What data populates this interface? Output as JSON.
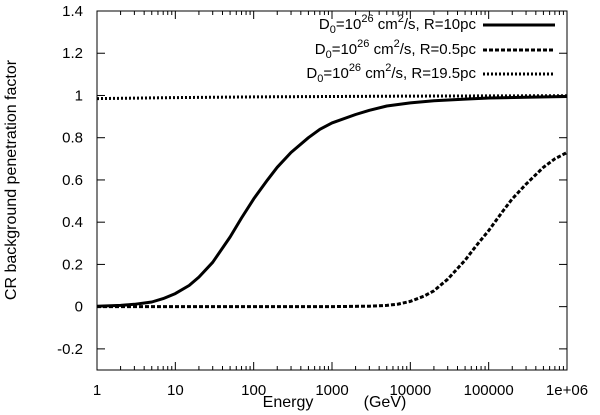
{
  "chart_data": {
    "type": "line",
    "title": "",
    "xlabel": "Energy",
    "xlabel_unit": "(GeV)",
    "ylabel": "CR background penetration factor",
    "xscale": "log",
    "xlim": [
      1,
      1000000
    ],
    "ylim": [
      -0.3,
      1.4
    ],
    "grid": false,
    "legend_position": "top-right",
    "x_ticks": [
      1,
      10,
      100,
      1000,
      10000,
      100000,
      1000000
    ],
    "x_tick_labels": [
      "1",
      "10",
      "100",
      "1000",
      "10000",
      "100000",
      "1e+06"
    ],
    "y_ticks": [
      -0.2,
      0,
      0.2,
      0.4,
      0.6,
      0.8,
      1,
      1.2,
      1.4
    ],
    "y_tick_labels": [
      "-0.2",
      "0",
      "0.2",
      "0.4",
      "0.6",
      "0.8",
      "1",
      "1.2",
      "1.4"
    ],
    "series": [
      {
        "name": "D0=10^26 cm^2/s, R=10pc",
        "legend": {
          "d": "D",
          "d_sub": "0",
          "eq": "=10",
          "exp": "26",
          "unit": " cm",
          "unit_exp": "2",
          "rest": "/s, R=10pc"
        },
        "style": "solid",
        "x": [
          1,
          2,
          3,
          5,
          7,
          10,
          15,
          20,
          30,
          50,
          70,
          100,
          150,
          200,
          300,
          500,
          700,
          1000,
          2000,
          3000,
          5000,
          10000,
          20000,
          50000,
          100000,
          300000,
          1000000
        ],
        "y": [
          0.002,
          0.006,
          0.011,
          0.022,
          0.038,
          0.062,
          0.1,
          0.14,
          0.21,
          0.33,
          0.42,
          0.51,
          0.6,
          0.66,
          0.73,
          0.8,
          0.84,
          0.87,
          0.91,
          0.93,
          0.95,
          0.965,
          0.975,
          0.983,
          0.988,
          0.992,
          0.995
        ]
      },
      {
        "name": "D0=10^26 cm^2/s, R=0.5pc",
        "legend": {
          "d": "D",
          "d_sub": "0",
          "eq": "=10",
          "exp": "26",
          "unit": " cm",
          "unit_exp": "2",
          "rest": "/s, R=0.5pc"
        },
        "style": "dashed",
        "x": [
          1,
          100,
          1000,
          3000,
          5000,
          7000,
          10000,
          15000,
          20000,
          30000,
          50000,
          70000,
          100000,
          150000,
          200000,
          300000,
          500000,
          700000,
          1000000
        ],
        "y": [
          0,
          0,
          0,
          0.002,
          0.006,
          0.012,
          0.025,
          0.05,
          0.075,
          0.13,
          0.22,
          0.29,
          0.36,
          0.45,
          0.51,
          0.58,
          0.66,
          0.7,
          0.73
        ]
      },
      {
        "name": "D0=10^26 cm^2/s, R=19.5pc",
        "legend": {
          "d": "D",
          "d_sub": "0",
          "eq": "=10",
          "exp": "26",
          "unit": " cm",
          "unit_exp": "2",
          "rest": "/s, R=19.5pc"
        },
        "style": "dotted",
        "x": [
          1,
          10,
          100,
          1000,
          10000,
          100000,
          1000000
        ],
        "y": [
          0.985,
          0.99,
          0.993,
          0.995,
          0.997,
          0.998,
          0.999
        ]
      }
    ]
  }
}
